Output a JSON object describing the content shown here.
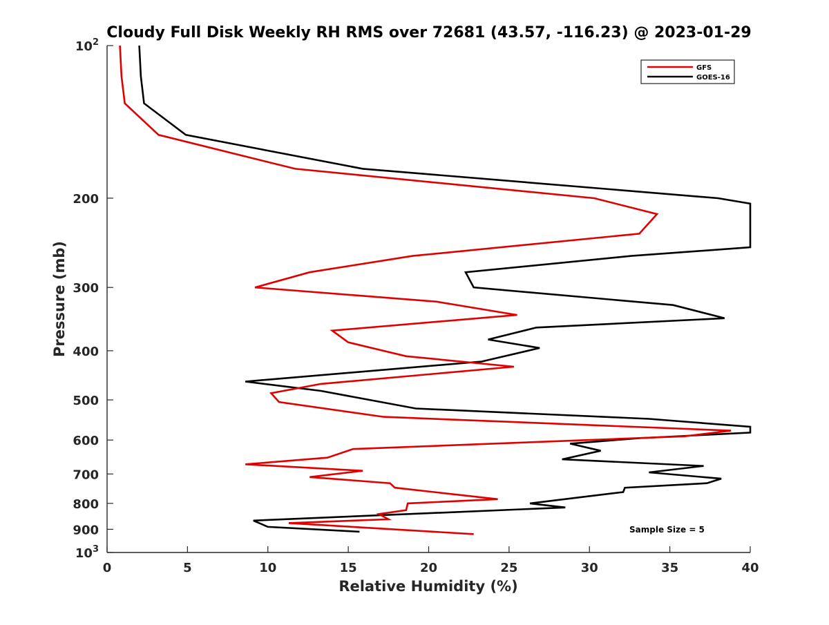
{
  "chart_data": {
    "type": "line",
    "title": "Cloudy Full Disk Weekly RH RMS over 72681 (43.57, -116.23) @ 2023-01-29",
    "xlabel": "Relative Humidity (%)",
    "ylabel": "Pressure (mb)",
    "xlim": [
      0,
      40
    ],
    "ylim": [
      100,
      1000
    ],
    "yscale": "log",
    "y_reversed": true,
    "grid": false,
    "legend_position": "top-right",
    "annotation": "Sample Size = 5",
    "x_ticks": [
      {
        "value": 0,
        "label": "0"
      },
      {
        "value": 5,
        "label": "5"
      },
      {
        "value": 10,
        "label": "10"
      },
      {
        "value": 15,
        "label": "15"
      },
      {
        "value": 20,
        "label": "20"
      },
      {
        "value": 25,
        "label": "25"
      },
      {
        "value": 30,
        "label": "30"
      },
      {
        "value": 35,
        "label": "35"
      },
      {
        "value": 40,
        "label": "40"
      }
    ],
    "y_ticks": [
      {
        "value": 100,
        "base": "10",
        "exp": "2"
      },
      {
        "value": 200,
        "label": "200"
      },
      {
        "value": 300,
        "label": "300"
      },
      {
        "value": 400,
        "label": "400"
      },
      {
        "value": 500,
        "label": "500"
      },
      {
        "value": 600,
        "label": "600"
      },
      {
        "value": 700,
        "label": "700"
      },
      {
        "value": 800,
        "label": "800"
      },
      {
        "value": 900,
        "label": "900"
      },
      {
        "value": 1000,
        "base": "10",
        "exp": "3"
      }
    ],
    "series": [
      {
        "name": "GFS",
        "color": "#e00000",
        "points": [
          [
            0.8,
            100
          ],
          [
            0.9,
            115
          ],
          [
            1.1,
            130
          ],
          [
            3.2,
            150
          ],
          [
            11.7,
            175
          ],
          [
            30.3,
            200
          ],
          [
            34.2,
            215
          ],
          [
            33.1,
            235
          ],
          [
            19.0,
            260
          ],
          [
            12.6,
            280
          ],
          [
            9.2,
            300
          ],
          [
            20.5,
            320
          ],
          [
            25.5,
            340
          ],
          [
            14.0,
            365
          ],
          [
            15.0,
            385
          ],
          [
            18.6,
            410
          ],
          [
            25.3,
            430
          ],
          [
            13.3,
            465
          ],
          [
            10.2,
            485
          ],
          [
            10.7,
            505
          ],
          [
            17.2,
            540
          ],
          [
            38.8,
            575
          ],
          [
            35.9,
            590
          ],
          [
            15.3,
            625
          ],
          [
            13.7,
            650
          ],
          [
            8.6,
            670
          ],
          [
            15.9,
            690
          ],
          [
            12.6,
            710
          ],
          [
            17.6,
            730
          ],
          [
            17.9,
            745
          ],
          [
            24.3,
            785
          ],
          [
            18.7,
            800
          ],
          [
            18.6,
            825
          ],
          [
            16.9,
            840
          ],
          [
            17.5,
            860
          ],
          [
            11.3,
            875
          ],
          [
            22.8,
            920
          ]
        ]
      },
      {
        "name": "GOES-16",
        "color": "#000000",
        "points": [
          [
            2.0,
            100
          ],
          [
            2.1,
            115
          ],
          [
            2.3,
            130
          ],
          [
            4.9,
            150
          ],
          [
            15.9,
            175
          ],
          [
            38.0,
            200
          ],
          [
            40.0,
            205
          ],
          [
            40.0,
            250
          ],
          [
            32.6,
            260
          ],
          [
            22.3,
            280
          ],
          [
            22.8,
            300
          ],
          [
            35.2,
            325
          ],
          [
            38.4,
            345
          ],
          [
            26.7,
            360
          ],
          [
            23.7,
            380
          ],
          [
            26.9,
            395
          ],
          [
            23.3,
            420
          ],
          [
            8.6,
            460
          ],
          [
            13.3,
            480
          ],
          [
            19.2,
            520
          ],
          [
            33.7,
            545
          ],
          [
            40.0,
            565
          ],
          [
            40.0,
            580
          ],
          [
            33.1,
            595
          ],
          [
            28.8,
            610
          ],
          [
            30.7,
            630
          ],
          [
            28.3,
            655
          ],
          [
            37.1,
            675
          ],
          [
            33.7,
            695
          ],
          [
            38.2,
            715
          ],
          [
            37.3,
            730
          ],
          [
            32.2,
            745
          ],
          [
            32.1,
            760
          ],
          [
            26.3,
            800
          ],
          [
            28.5,
            815
          ],
          [
            9.1,
            865
          ],
          [
            10.0,
            890
          ],
          [
            15.7,
            910
          ]
        ]
      }
    ]
  }
}
